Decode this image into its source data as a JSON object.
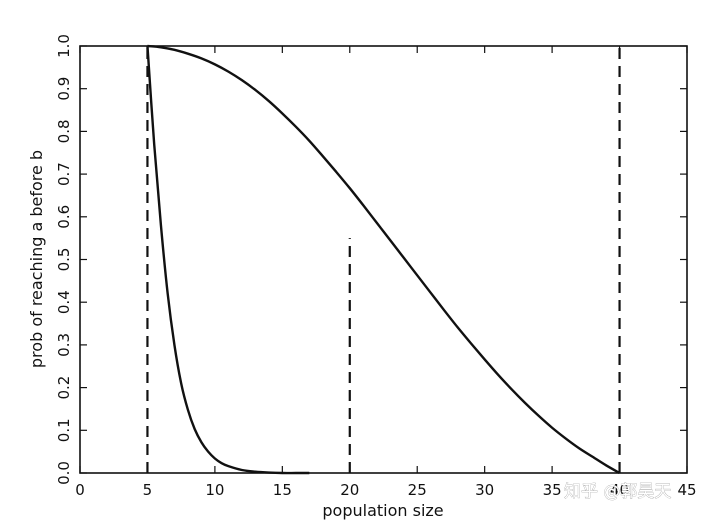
{
  "chart_data": {
    "type": "line",
    "xlabel": "population size",
    "ylabel": "prob of reaching a before b",
    "xlim": [
      0,
      45
    ],
    "ylim": [
      0,
      1
    ],
    "xticks": [
      0,
      5,
      10,
      15,
      20,
      25,
      30,
      35,
      40,
      45
    ],
    "yticks": [
      0.0,
      0.1,
      0.2,
      0.3,
      0.4,
      0.5,
      0.6,
      0.7,
      0.8,
      0.9,
      1.0
    ],
    "xtick_labels": [
      "0",
      "5",
      "10",
      "15",
      "20",
      "25",
      "30",
      "35",
      "40",
      "45"
    ],
    "ytick_labels": [
      "0.0",
      "0.1",
      "0.2",
      "0.3",
      "0.4",
      "0.5",
      "0.6",
      "0.7",
      "0.8",
      "0.9",
      "1.0"
    ],
    "series": [
      {
        "style": "solid",
        "x": [
          5,
          6,
          7,
          8,
          9,
          10,
          11,
          12,
          13,
          14,
          15,
          16,
          17,
          18,
          19,
          20,
          21,
          22,
          23,
          24,
          25,
          26,
          27,
          28,
          29,
          30,
          31,
          32,
          33,
          34,
          35,
          36,
          37,
          38,
          39,
          40
        ],
        "y": [
          1.0,
          0.997,
          0.991,
          0.982,
          0.971,
          0.957,
          0.94,
          0.92,
          0.897,
          0.871,
          0.842,
          0.811,
          0.778,
          0.742,
          0.705,
          0.667,
          0.627,
          0.586,
          0.545,
          0.504,
          0.463,
          0.422,
          0.381,
          0.341,
          0.303,
          0.266,
          0.23,
          0.196,
          0.164,
          0.134,
          0.106,
          0.081,
          0.058,
          0.038,
          0.018,
          0.0
        ]
      },
      {
        "style": "solid",
        "x": [
          5,
          5.5,
          6,
          6.5,
          7,
          7.5,
          8,
          8.5,
          9,
          9.5,
          10,
          10.5,
          11,
          12,
          13,
          14,
          15,
          16,
          17
        ],
        "y": [
          1.0,
          0.77,
          0.58,
          0.42,
          0.3,
          0.21,
          0.148,
          0.103,
          0.072,
          0.05,
          0.034,
          0.023,
          0.016,
          0.007,
          0.003,
          0.001,
          0.0,
          0.0,
          0.0
        ]
      }
    ],
    "vlines": [
      {
        "x": 5,
        "y_top": 1.0,
        "style": "dashed"
      },
      {
        "x": 20,
        "y_top": 0.55,
        "style": "dashed"
      },
      {
        "x": 40,
        "y_top": 1.0,
        "style": "dashed"
      }
    ]
  },
  "watermark": {
    "text": "知乎 @郭昊天"
  }
}
